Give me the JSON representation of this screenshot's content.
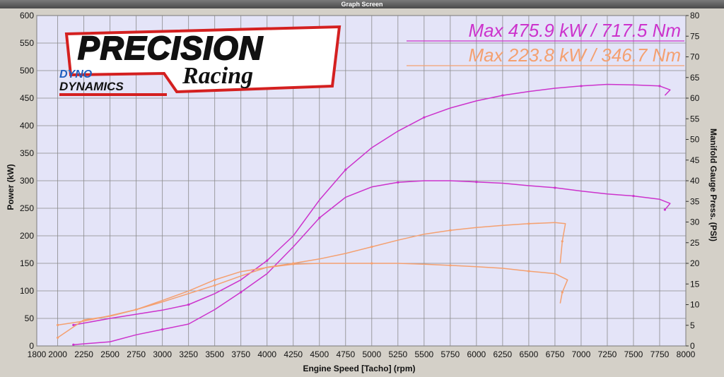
{
  "window": {
    "title": "Graph Screen"
  },
  "logo": {
    "brand_main": "PRECISION",
    "brand_sub": "Racing",
    "dyno_line1": "DYNO",
    "dyno_line2": "DYNAMICS"
  },
  "annotations": {
    "max_tuned": "Max 475.9 kW  / 717.5 Nm",
    "max_stock": "Max 223.8 kW  / 346.7 Nm"
  },
  "colors": {
    "background": "#e4e4f8",
    "grid": "#8a8a8a",
    "tuned": "#cc33cc",
    "stock": "#f4a070"
  },
  "chart_data": {
    "type": "line",
    "title": "",
    "xlabel": "Engine Speed [Tacho] (rpm)",
    "ylabel": "Power (kW)",
    "y2label": "Manifold Gauge Press. (PSI)",
    "xlim": [
      1800,
      8000
    ],
    "ylim": [
      0,
      600
    ],
    "y2lim": [
      0,
      80
    ],
    "x_ticks": [
      "1800",
      "2000",
      "2250",
      "2500",
      "2750",
      "3000",
      "3250",
      "3500",
      "3750",
      "4000",
      "4250",
      "4500",
      "4750",
      "5000",
      "5250",
      "5500",
      "5750",
      "6000",
      "6250",
      "6500",
      "6750",
      "7000",
      "7250",
      "7500",
      "7750",
      "8000"
    ],
    "y_ticks": [
      "0",
      "50",
      "100",
      "150",
      "200",
      "250",
      "300",
      "350",
      "400",
      "450",
      "500",
      "550",
      "600"
    ],
    "y2_ticks": [
      "0",
      "5",
      "10",
      "15",
      "20",
      "25",
      "30",
      "35",
      "40",
      "45",
      "50",
      "55",
      "60",
      "65",
      "70",
      "75",
      "80"
    ],
    "grid": true,
    "series": [
      {
        "role": "tuned-power",
        "axis": "left",
        "x": [
          2150,
          2500,
          3000,
          3250,
          3500,
          3750,
          4000,
          4250,
          4500,
          4750,
          5000,
          5250,
          5500,
          5750,
          6000,
          6250,
          6500,
          6750,
          7000,
          7250,
          7500,
          7750,
          7850,
          7800
        ],
        "y": [
          38,
          50,
          65,
          75,
          95,
          120,
          155,
          200,
          265,
          320,
          360,
          390,
          415,
          432,
          445,
          455,
          462,
          468,
          472,
          475,
          474,
          472,
          465,
          455
        ]
      },
      {
        "role": "tuned-boost",
        "axis": "right",
        "x": [
          2150,
          2500,
          2750,
          3000,
          3250,
          3500,
          3750,
          4000,
          4250,
          4500,
          4750,
          5000,
          5250,
          5500,
          5750,
          6000,
          6250,
          6500,
          6750,
          7000,
          7250,
          7500,
          7750,
          7850,
          7800
        ],
        "y": [
          0.3,
          1,
          2.7,
          4,
          5.3,
          8.8,
          13,
          17.5,
          24,
          31,
          36,
          38.5,
          39.6,
          40,
          40,
          39.7,
          39.4,
          38.8,
          38.3,
          37.5,
          36.8,
          36.3,
          35.5,
          34.5,
          33
        ]
      },
      {
        "role": "stock-power",
        "axis": "left",
        "x": [
          2000,
          2250,
          2500,
          2750,
          3000,
          3250,
          3500,
          3750,
          4000,
          4250,
          4500,
          4750,
          5000,
          5250,
          5500,
          5750,
          6000,
          6250,
          6500,
          6750,
          6850,
          6820,
          6800
        ],
        "y": [
          38,
          45,
          55,
          66,
          80,
          95,
          110,
          127,
          143,
          150,
          158,
          168,
          180,
          192,
          203,
          210,
          215,
          219,
          222,
          224,
          222,
          190,
          150
        ]
      },
      {
        "role": "stock-boost",
        "axis": "right",
        "x": [
          2000,
          2250,
          2500,
          2750,
          3000,
          3250,
          3500,
          3750,
          4000,
          4250,
          4500,
          4750,
          5000,
          5250,
          5500,
          5750,
          6000,
          6250,
          6500,
          6750,
          6870,
          6820,
          6800
        ],
        "y": [
          2,
          6.3,
          7.2,
          8.8,
          11,
          13.3,
          16,
          18,
          19,
          19.8,
          20,
          20,
          20,
          20,
          19.8,
          19.5,
          19.2,
          18.8,
          18.1,
          17.5,
          16,
          13,
          10.3
        ]
      }
    ]
  }
}
